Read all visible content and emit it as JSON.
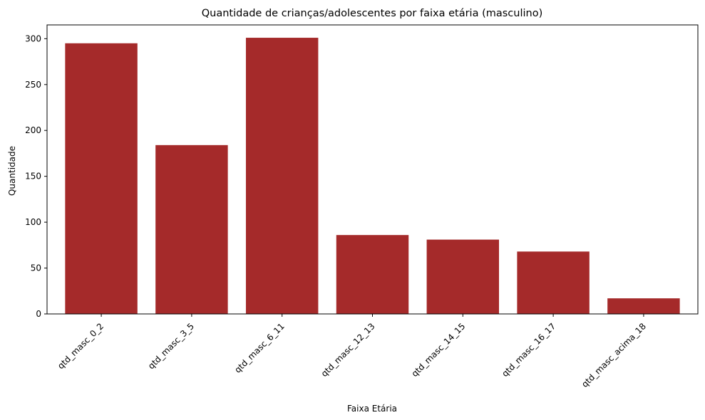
{
  "chart_data": {
    "type": "bar",
    "title": "Quantidade de crianças/adolescentes por faixa etária (masculino)",
    "xlabel": "Faixa Etária",
    "ylabel": "Quantidade",
    "categories": [
      "qtd_masc_0_2",
      "qtd_masc_3_5",
      "qtd_masc_6_11",
      "qtd_masc_12_13",
      "qtd_masc_14_15",
      "qtd_masc_16_17",
      "qtd_masc_acima_18"
    ],
    "values": [
      295,
      184,
      301,
      86,
      81,
      68,
      17
    ],
    "ylim": [
      0,
      315
    ],
    "yticks": [
      0,
      50,
      100,
      150,
      200,
      250,
      300
    ],
    "bar_color": "#a52a2a",
    "grid": false,
    "legend": "none"
  }
}
